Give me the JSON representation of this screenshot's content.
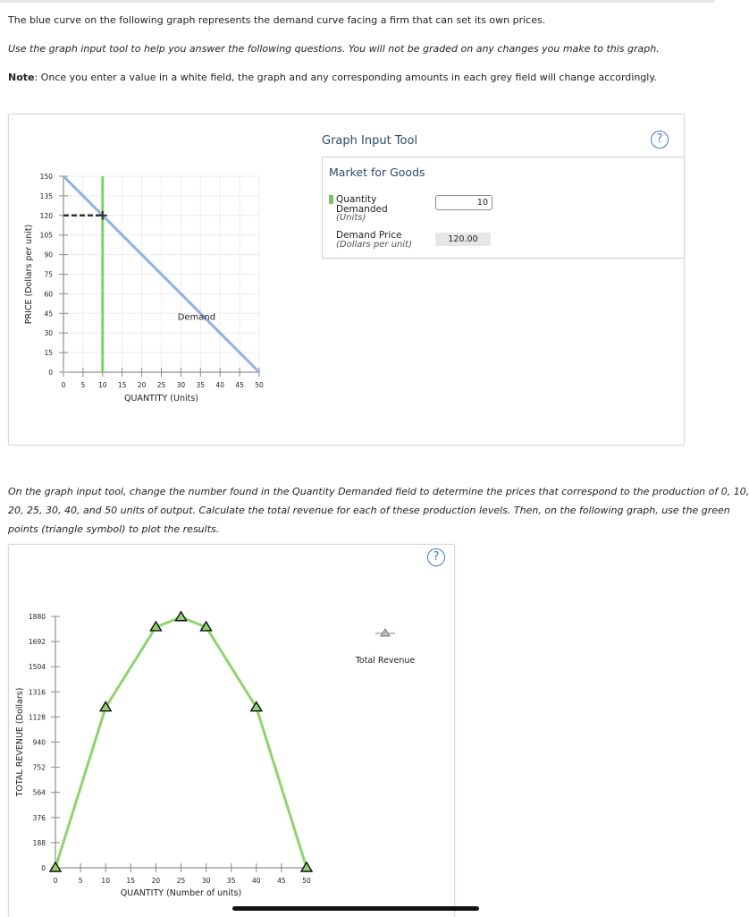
{
  "intro": {
    "line1": "The blue curve on the following graph represents the demand curve facing a firm that can set its own prices.",
    "line2": "Use the graph input tool to help you answer the following questions. You will not be graded on any changes you make to this graph.",
    "note_label": "Note",
    "note_text": ": Once you enter a value in a white field, the graph and any corresponding amounts in each grey field will change accordingly."
  },
  "graph_tool": {
    "title": "Graph Input Tool",
    "help": "?",
    "box_title": "Market for Goods",
    "quantity_label": "Quantity Demanded",
    "quantity_unit": "(Units)",
    "quantity_value": "10",
    "price_label": "Demand Price",
    "price_unit": "(Dollars per unit)",
    "price_value": "120.00"
  },
  "instructions": {
    "line1": "On the graph input tool, change the number found in the Quantity Demanded field to determine the prices that correspond to the production of 0, 10,",
    "line2": "20, 25, 30, 40, and 50 units of output. Calculate the total revenue for each of these production levels. Then, on the following graph, use the green",
    "line3": "points (triangle symbol) to plot the results."
  },
  "revenue_panel": {
    "help": "?",
    "legend_label": "Total Revenue"
  },
  "colors": {
    "demand": "#8fb2e0",
    "quantity_line": "#7dd36a",
    "revenue": "#8fd36e"
  },
  "chart_data": [
    {
      "type": "line",
      "xlabel": "QUANTITY (Units)",
      "ylabel": "PRICE (Dollars per unit)",
      "xlim": [
        0,
        50
      ],
      "ylim": [
        0,
        150
      ],
      "xticks": [
        0,
        5,
        10,
        15,
        20,
        25,
        30,
        35,
        40,
        45,
        50
      ],
      "yticks": [
        0,
        15,
        30,
        45,
        60,
        75,
        90,
        105,
        120,
        135,
        150
      ],
      "series": [
        {
          "name": "Demand",
          "x": [
            0,
            50
          ],
          "y": [
            150,
            0
          ]
        }
      ],
      "vertical_line": {
        "x": 10
      },
      "selected_point": {
        "x": 10,
        "y": 120
      },
      "annotations": [
        "Demand"
      ]
    },
    {
      "type": "line",
      "xlabel": "QUANTITY (Number of units)",
      "ylabel": "TOTAL REVENUE (Dollars)",
      "xlim": [
        0,
        50
      ],
      "ylim": [
        0,
        1880
      ],
      "xticks": [
        0,
        5,
        10,
        15,
        20,
        25,
        30,
        35,
        40,
        45,
        50
      ],
      "yticks": [
        0,
        188,
        376,
        564,
        752,
        940,
        1128,
        1316,
        1504,
        1692,
        1880
      ],
      "series": [
        {
          "name": "Total Revenue",
          "x": [
            0,
            10,
            20,
            25,
            30,
            40,
            50
          ],
          "y": [
            0,
            1200,
            1800,
            1875,
            1800,
            1200,
            0
          ]
        }
      ],
      "legend": "right"
    }
  ]
}
